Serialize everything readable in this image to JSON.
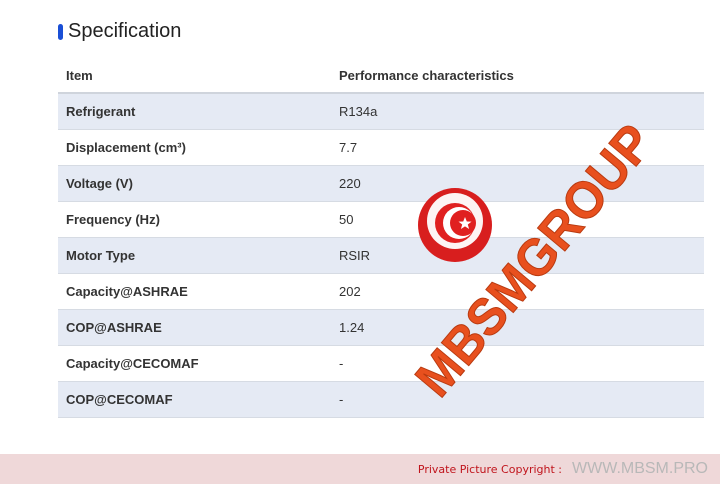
{
  "title": "Specification",
  "table": {
    "headers": [
      "Item",
      "Performance characteristics"
    ],
    "rows": [
      [
        "Refrigerant",
        "R134a"
      ],
      [
        "Displacement (cm³)",
        "7.7"
      ],
      [
        "Voltage (V)",
        "220"
      ],
      [
        "Frequency (Hz)",
        "50"
      ],
      [
        "Motor Type",
        "RSIR"
      ],
      [
        "Capacity@ASHRAE",
        "202"
      ],
      [
        "COP@ASHRAE",
        "1.24"
      ],
      [
        "Capacity@CECOMAF",
        "-"
      ],
      [
        "COP@CECOMAF",
        "-"
      ]
    ]
  },
  "watermark": {
    "text": "MBSMGROUP",
    "color": "#e8501e"
  },
  "footer": {
    "label": "Private Picture Copyright :",
    "url": "WWW.MBSM.PRO"
  }
}
